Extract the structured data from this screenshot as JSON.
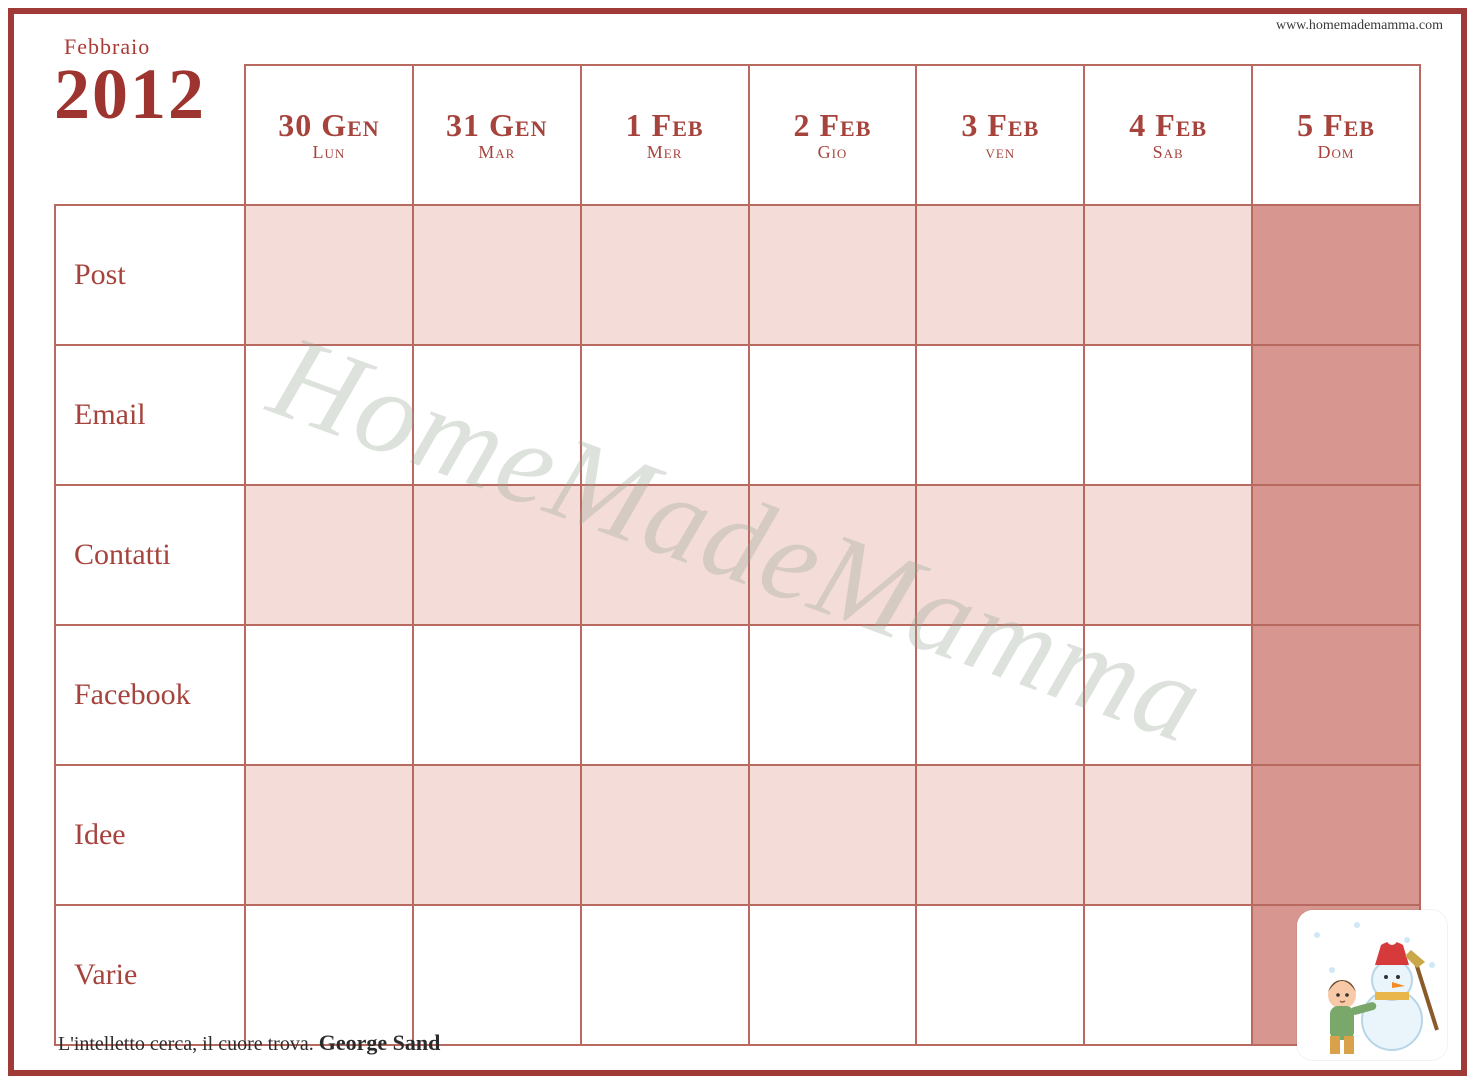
{
  "site_url": "www.homemademamma.com",
  "header": {
    "month": "Febbraio",
    "year": "2012"
  },
  "watermark": "HomeMadeMamma",
  "quote": {
    "text": "L'intelletto cerca, il cuore trova.",
    "author": "George Sand"
  },
  "colors": {
    "frame_border": "#a03a36",
    "cell_border": "#b96a60",
    "text_accent": "#a5433c",
    "light_fill": "#f4ddd8",
    "sunday_fill": "#d79790",
    "white": "#ffffff"
  },
  "days": [
    {
      "date": "30 Gen",
      "dow": "Lun",
      "sunday": false
    },
    {
      "date": "31 Gen",
      "dow": "Mar",
      "sunday": false
    },
    {
      "date": "1 Feb",
      "dow": "Mer",
      "sunday": false
    },
    {
      "date": "2 Feb",
      "dow": "Gio",
      "sunday": false
    },
    {
      "date": "3 Feb",
      "dow": "ven",
      "sunday": false
    },
    {
      "date": "4 Feb",
      "dow": "Sab",
      "sunday": false
    },
    {
      "date": "5 Feb",
      "dow": "Dom",
      "sunday": true
    }
  ],
  "rows": [
    {
      "label": "Post",
      "shaded": true
    },
    {
      "label": "Email",
      "shaded": false
    },
    {
      "label": "Contatti",
      "shaded": true
    },
    {
      "label": "Facebook",
      "shaded": false
    },
    {
      "label": "Idee",
      "shaded": true
    },
    {
      "label": "Varie",
      "shaded": false
    }
  ]
}
